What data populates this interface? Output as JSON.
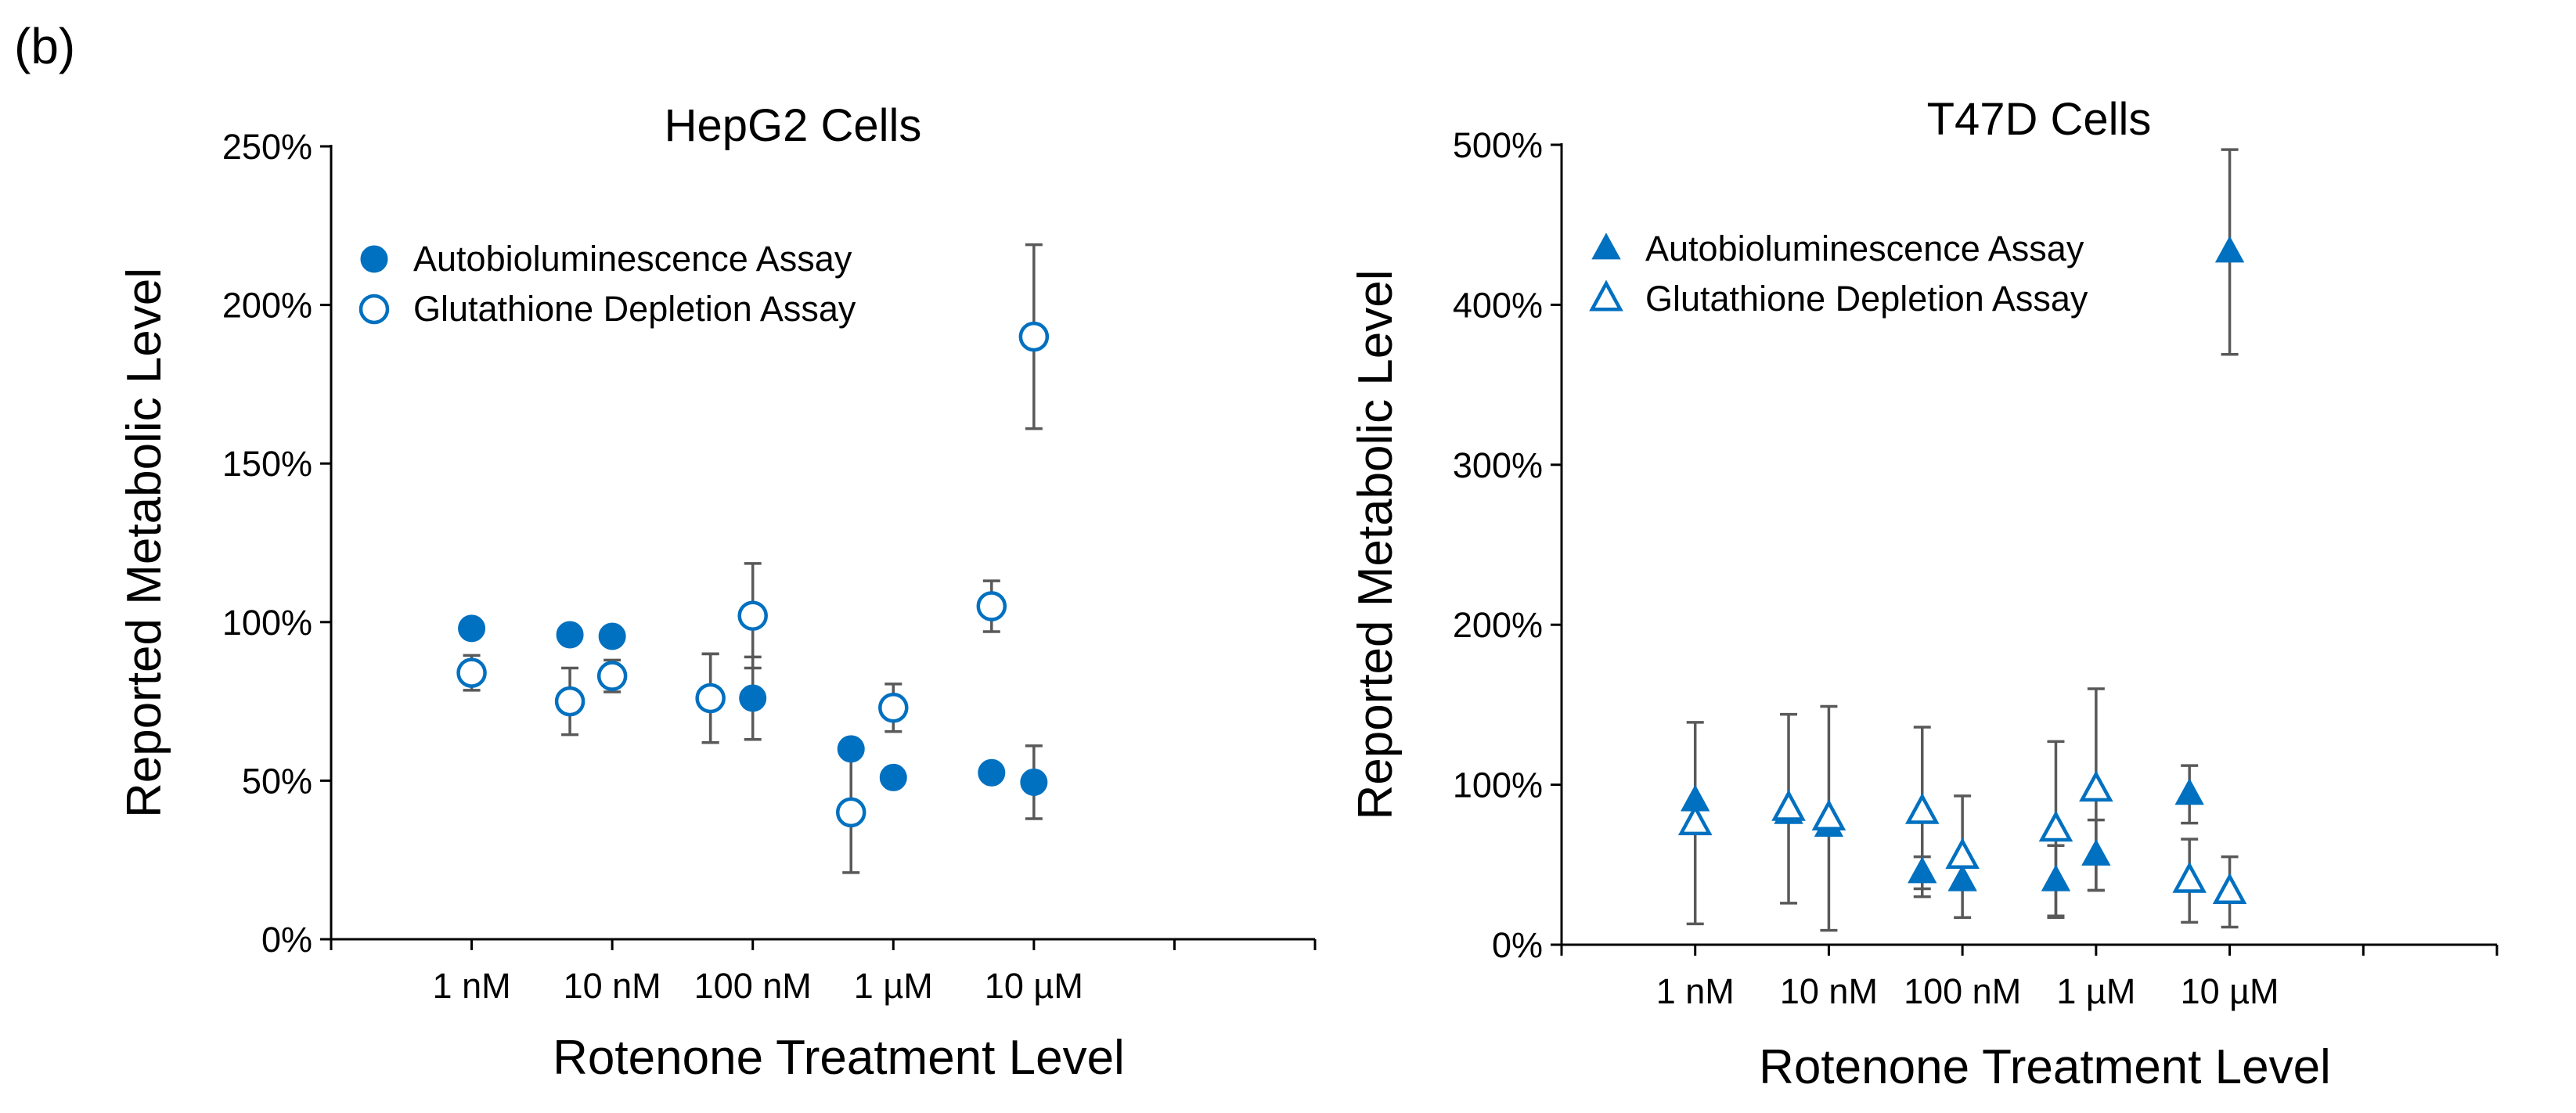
{
  "panel_label": "(b)",
  "colors": {
    "marker": "#0070C0",
    "axis": "#000000",
    "errorbar": "#595959"
  },
  "chart_data": [
    {
      "type": "scatter",
      "title": "HepG2 Cells",
      "xlabel": "Rotenone Treatment Level",
      "ylabel": "Reported Metabolic Level",
      "x_scale": "log10 concentration (nM)",
      "xlim": [
        0.1,
        1000000
      ],
      "ylim": [
        0,
        250
      ],
      "y_ticks": [
        0,
        50,
        100,
        150,
        200,
        250
      ],
      "y_tick_labels": [
        "0%",
        "50%",
        "100%",
        "150%",
        "200%",
        "250%"
      ],
      "x_ticks": [
        1,
        10,
        100,
        1000,
        10000
      ],
      "x_tick_labels": [
        "1 nM",
        "10 nM",
        "100 nM",
        "1 µM",
        "10 µM"
      ],
      "legend_position": "top-left",
      "series": [
        {
          "name": "Autobioluminescence Assay",
          "marker": "circle-filled",
          "points": [
            {
              "x": 1,
              "y": 98,
              "err": 0
            },
            {
              "x": 5,
              "y": 96,
              "err": 0
            },
            {
              "x": 10,
              "y": 95.5,
              "err": 0
            },
            {
              "x": 50,
              "y": 76,
              "err": 14
            },
            {
              "x": 100,
              "y": 76,
              "err": 13
            },
            {
              "x": 500,
              "y": 60,
              "err": 0
            },
            {
              "x": 1000,
              "y": 51,
              "err": 0
            },
            {
              "x": 5000,
              "y": 52.5,
              "err": 0
            },
            {
              "x": 10000,
              "y": 49.5,
              "err": 11.5
            }
          ]
        },
        {
          "name": "Glutathione Depletion Assay",
          "marker": "circle-open",
          "points": [
            {
              "x": 1,
              "y": 84,
              "err": 5.5
            },
            {
              "x": 5,
              "y": 75,
              "err": 10.5
            },
            {
              "x": 10,
              "y": 83,
              "err": 5
            },
            {
              "x": 50,
              "y": 76,
              "err": 14
            },
            {
              "x": 100,
              "y": 102,
              "err": 16.5
            },
            {
              "x": 500,
              "y": 40,
              "err": 19
            },
            {
              "x": 1000,
              "y": 73,
              "err": 7.5
            },
            {
              "x": 5000,
              "y": 105,
              "err": 8
            },
            {
              "x": 10000,
              "y": 190,
              "err": 29
            }
          ]
        }
      ]
    },
    {
      "type": "scatter",
      "title": "T47D Cells",
      "xlabel": "Rotenone Treatment Level",
      "ylabel": "Reported Metabolic Level",
      "x_scale": "log10 concentration (nM)",
      "xlim": [
        0.1,
        1000000
      ],
      "ylim": [
        0,
        500
      ],
      "y_ticks": [
        0,
        100,
        200,
        300,
        400,
        500
      ],
      "y_tick_labels": [
        "0%",
        "100%",
        "200%",
        "300%",
        "400%",
        "500%"
      ],
      "x_ticks": [
        1,
        10,
        100,
        1000,
        10000
      ],
      "x_tick_labels": [
        "1 nM",
        "10 nM",
        "100 nM",
        "1 µM",
        "10 µM"
      ],
      "legend_position": "top-left",
      "series": [
        {
          "name": "Autobioluminescence Assay",
          "marker": "triangle-filled",
          "points": [
            {
              "x": 1,
              "y": 90,
              "err": 0
            },
            {
              "x": 5,
              "y": 82,
              "err": 0
            },
            {
              "x": 10,
              "y": 74,
              "err": 0
            },
            {
              "x": 50,
              "y": 45,
              "err": 10
            },
            {
              "x": 100,
              "y": 40,
              "err": 0
            },
            {
              "x": 500,
              "y": 40,
              "err": 22
            },
            {
              "x": 1000,
              "y": 56,
              "err": 22
            },
            {
              "x": 5000,
              "y": 94,
              "err": 18
            },
            {
              "x": 10000,
              "y": 433,
              "err": 64
            }
          ]
        },
        {
          "name": "Glutathione Depletion Assay",
          "marker": "triangle-open",
          "points": [
            {
              "x": 1,
              "y": 76,
              "err": 63
            },
            {
              "x": 5,
              "y": 85,
              "err": 59
            },
            {
              "x": 10,
              "y": 79,
              "err": 70
            },
            {
              "x": 50,
              "y": 83,
              "err": 53
            },
            {
              "x": 100,
              "y": 55,
              "err": 38
            },
            {
              "x": 500,
              "y": 72,
              "err": 55
            },
            {
              "x": 1000,
              "y": 97,
              "err": 63
            },
            {
              "x": 5000,
              "y": 40,
              "err": 26
            },
            {
              "x": 10000,
              "y": 33,
              "err": 22
            }
          ]
        }
      ]
    }
  ]
}
